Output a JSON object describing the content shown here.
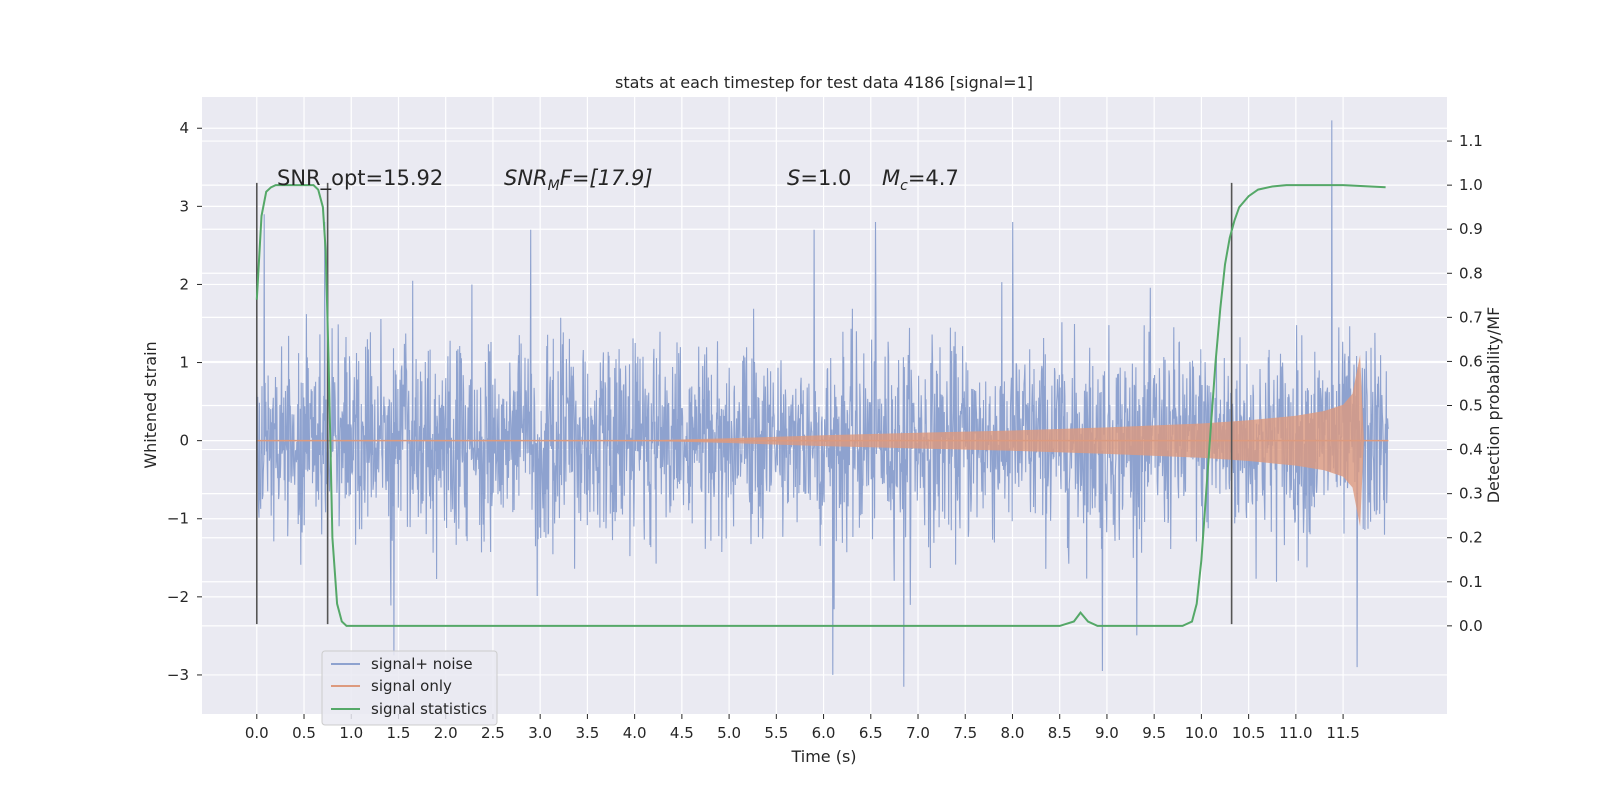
{
  "chart_data": {
    "type": "line",
    "title": "stats at each timestep for test data 4186 [signal=1]",
    "xlabel": "Time (s)",
    "ylabel_left": "Whitened strain",
    "ylabel_right": "Detection probability/MF",
    "xlim": [
      -0.58,
      12.6
    ],
    "ylim_left": [
      -3.5,
      4.4
    ],
    "ylim_right": [
      -0.2,
      1.2
    ],
    "x_ticks": [
      0.0,
      0.5,
      1.0,
      1.5,
      2.0,
      2.5,
      3.0,
      3.5,
      4.0,
      4.5,
      5.0,
      5.5,
      6.0,
      6.5,
      7.0,
      7.5,
      8.0,
      8.5,
      9.0,
      9.5,
      10.0,
      10.5,
      11.0,
      11.5
    ],
    "x_tick_labels": [
      "0.0",
      "0.5",
      "1.0",
      "1.5",
      "2.0",
      "2.5",
      "3.0",
      "3.5",
      "4.0",
      "4.5",
      "5.0",
      "5.5",
      "6.0",
      "6.5",
      "7.0",
      "7.5",
      "8.0",
      "8.5",
      "9.0",
      "9.5",
      "10.0",
      "10.5",
      "11.0",
      "11.5"
    ],
    "y_left_ticks": [
      -3,
      -2,
      -1,
      0,
      1,
      2,
      3,
      4
    ],
    "y_left_tick_labels": [
      "−3",
      "−2",
      "−1",
      "0",
      "1",
      "2",
      "3",
      "4"
    ],
    "y_right_ticks": [
      0.0,
      0.1,
      0.2,
      0.3,
      0.4,
      0.5,
      0.6,
      0.7,
      0.8,
      0.9,
      1.0,
      1.1
    ],
    "y_right_tick_labels": [
      "0.0",
      "0.1",
      "0.2",
      "0.3",
      "0.4",
      "0.5",
      "0.6",
      "0.7",
      "0.8",
      "0.9",
      "1.0",
      "1.1"
    ],
    "grid": true,
    "legend_position": "lower-left",
    "series": [
      {
        "name": "signal+ noise",
        "color": "#8ea2cf",
        "axis": "left",
        "x_range": [
          0.0,
          11.98
        ],
        "envelope_typical": [
          -1.5,
          1.55
        ],
        "peaks": [
          {
            "x": 0.08,
            "y": 2.9
          },
          {
            "x": 0.72,
            "y": 2.8
          },
          {
            "x": 1.45,
            "y": -2.75
          },
          {
            "x": 1.95,
            "y": -0.6
          },
          {
            "x": 2.9,
            "y": 2.7
          },
          {
            "x": 5.9,
            "y": 2.7
          },
          {
            "x": 6.1,
            "y": -3.0
          },
          {
            "x": 6.55,
            "y": 2.8
          },
          {
            "x": 6.85,
            "y": -3.15
          },
          {
            "x": 8.0,
            "y": 2.8
          },
          {
            "x": 8.95,
            "y": -2.95
          },
          {
            "x": 11.38,
            "y": 4.1
          },
          {
            "x": 11.65,
            "y": -2.9
          }
        ]
      },
      {
        "name": "signal only",
        "color": "#dd9a7e",
        "axis": "left",
        "envelope": {
          "x": [
            0.0,
            4.0,
            5.0,
            6.0,
            7.0,
            8.0,
            9.0,
            10.0,
            10.5,
            11.0,
            11.3,
            11.5,
            11.6,
            11.68,
            11.72,
            11.98
          ],
          "amplitude": [
            0.0,
            0.0,
            0.03,
            0.07,
            0.1,
            0.13,
            0.17,
            0.22,
            0.26,
            0.32,
            0.38,
            0.46,
            0.6,
            1.1,
            0.0,
            0.0
          ]
        }
      },
      {
        "name": "signal statistics",
        "color": "#55a868",
        "axis": "right",
        "x": [
          0.0,
          0.05,
          0.1,
          0.15,
          0.2,
          0.3,
          0.4,
          0.5,
          0.6,
          0.65,
          0.7,
          0.73,
          0.76,
          0.8,
          0.85,
          0.9,
          0.95,
          1.0,
          2.0,
          4.0,
          6.0,
          6.3,
          8.0,
          8.5,
          8.65,
          8.72,
          8.8,
          8.9,
          9.0,
          9.3,
          9.8,
          9.9,
          9.95,
          10.0,
          10.05,
          10.1,
          10.15,
          10.2,
          10.25,
          10.3,
          10.35,
          10.4,
          10.5,
          10.6,
          10.75,
          10.9,
          11.0,
          11.5,
          11.95
        ],
        "y": [
          0.74,
          0.93,
          0.985,
          0.995,
          1.0,
          1.0,
          1.0,
          1.0,
          1.0,
          0.99,
          0.95,
          0.85,
          0.6,
          0.2,
          0.05,
          0.01,
          0.0,
          0.0,
          0.0,
          0.0,
          0.0,
          0.0,
          0.0,
          0.0,
          0.01,
          0.03,
          0.01,
          0.0,
          0.0,
          0.0,
          0.0,
          0.01,
          0.05,
          0.15,
          0.3,
          0.45,
          0.6,
          0.72,
          0.82,
          0.88,
          0.92,
          0.95,
          0.975,
          0.99,
          0.997,
          1.0,
          1.0,
          1.0,
          0.995
        ]
      }
    ],
    "vertical_lines": [
      {
        "x": 0.0,
        "y_range": [
          -2.35,
          3.3
        ]
      },
      {
        "x": 0.75,
        "y_range": [
          -2.35,
          3.3
        ]
      },
      {
        "x": 10.32,
        "y_range": [
          -2.35,
          3.3
        ]
      }
    ],
    "annotations": {
      "snr_opt": "SNR_opt=15.92",
      "snr_mf_symbol": "SNR",
      "snr_mf_sub": "M",
      "snr_mf_rest": "F=[17.9]",
      "s_symbol": "S",
      "s_rest": "=1.0",
      "mc_symbol": "M",
      "mc_sub": "c",
      "mc_rest": "=4.7"
    }
  }
}
